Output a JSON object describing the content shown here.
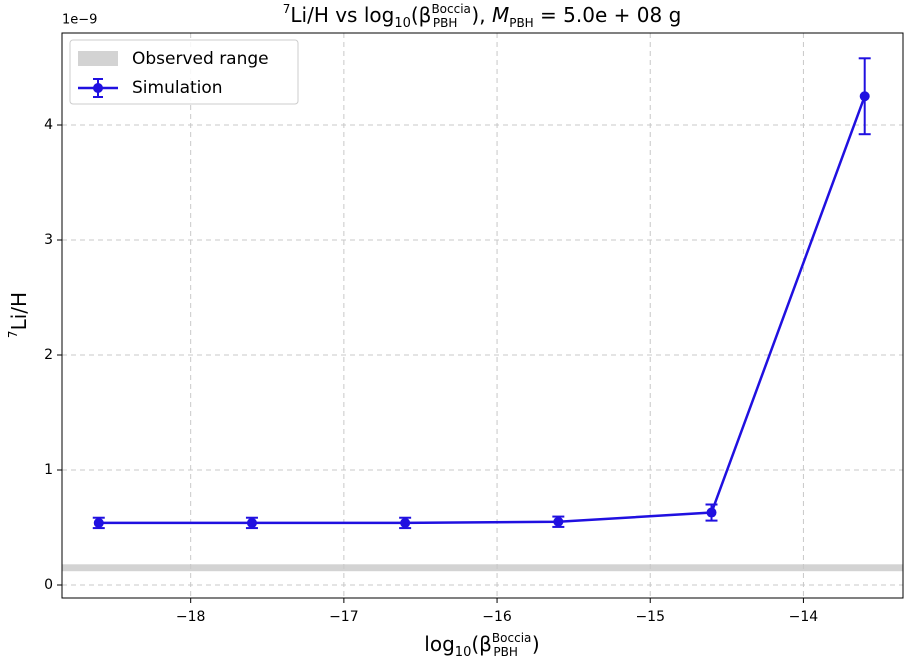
{
  "chart_data": {
    "type": "errorbar-line",
    "title": [
      "7",
      "Li/H vs log",
      "10",
      "(β",
      "Boccia",
      "PBH",
      "), ",
      "M",
      "PBH",
      " = 5.0e + 08 g"
    ],
    "xlabel": [
      "log",
      "10",
      "(β",
      "Boccia",
      "PBH",
      ")"
    ],
    "ylabel": [
      "7",
      "Li/H"
    ],
    "y_offset_label": "1e−9",
    "x": [
      -18.6,
      -17.6,
      -16.6,
      -15.6,
      -14.6,
      -13.6
    ],
    "series": [
      {
        "name": "Simulation",
        "color": "#2010e0",
        "values": [
          0.54,
          0.54,
          0.54,
          0.55,
          0.63,
          4.25
        ],
        "errors": [
          0.045,
          0.045,
          0.045,
          0.045,
          0.07,
          0.33
        ]
      }
    ],
    "band": {
      "name": "Observed range",
      "color": "#d3d3d3",
      "range": [
        0.12,
        0.18
      ]
    },
    "xlim": [
      -18.84,
      -13.35
    ],
    "ylim": [
      -0.113,
      4.8
    ],
    "xticks": [
      {
        "value": -18,
        "label": "−18"
      },
      {
        "value": -17,
        "label": "−17"
      },
      {
        "value": -16,
        "label": "−16"
      },
      {
        "value": -15,
        "label": "−15"
      },
      {
        "value": -14,
        "label": "−14"
      }
    ],
    "yticks": [
      0,
      1,
      2,
      3,
      4
    ],
    "grid": true,
    "legend": "upper left"
  }
}
